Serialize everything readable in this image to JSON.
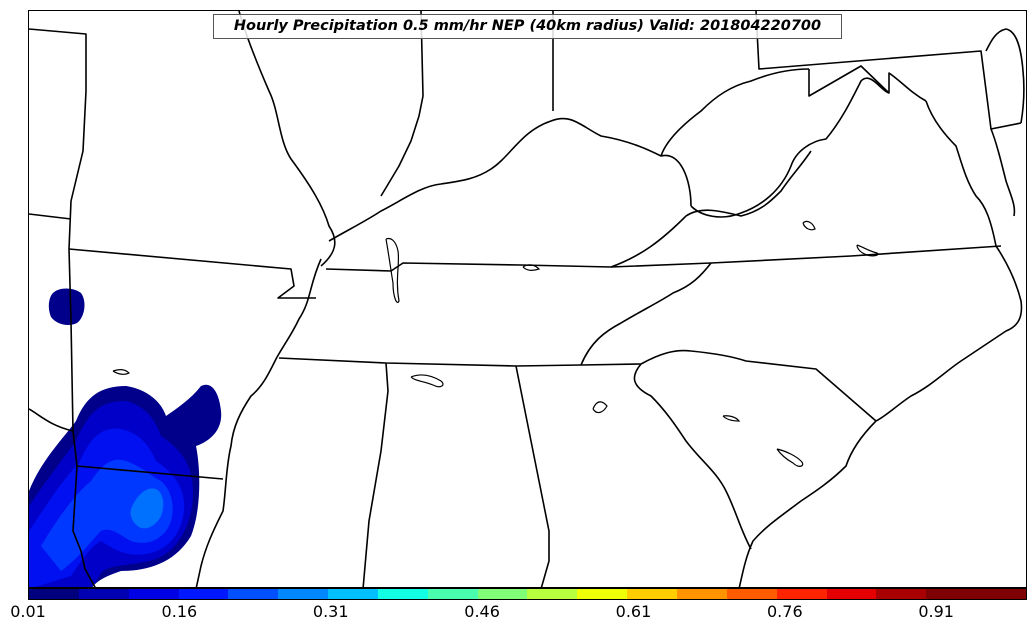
{
  "title": "Hourly Precipitation 0.5 mm/hr NEP (40km radius) Valid: 201804220700",
  "colorbar": {
    "colors": [
      "#00007f",
      "#0000b2",
      "#0000e4",
      "#0018ff",
      "#0050ff",
      "#0088ff",
      "#00c0ff",
      "#12ffe4",
      "#49ffad",
      "#81ff76",
      "#b8ff3f",
      "#efff08",
      "#ffcd00",
      "#ff9400",
      "#ff5c00",
      "#ff2400",
      "#e40000",
      "#a80000",
      "#7f0000",
      "#7f0000"
    ],
    "tick_labels": [
      "0.01",
      "0.16",
      "0.31",
      "0.46",
      "0.61",
      "0.76",
      "0.91"
    ],
    "tick_values": [
      0.01,
      0.16,
      0.31,
      0.46,
      0.61,
      0.76,
      0.91
    ],
    "range": [
      0.01,
      1.0
    ]
  },
  "precip_colors": {
    "level1": "#00008b",
    "level2": "#0000c8",
    "level3": "#0010f0",
    "level4": "#0038ff",
    "level5": "#0070ff"
  }
}
